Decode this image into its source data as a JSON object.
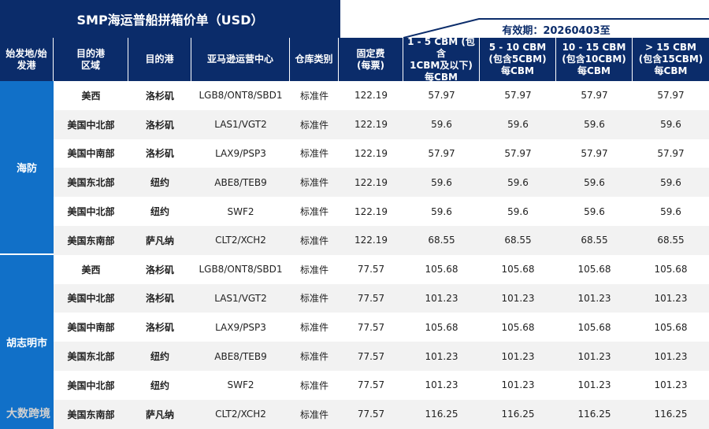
{
  "title": "SMP海运普船拼箱价单（USD）",
  "validity": "有效期：20260403至",
  "headers": [
    "始发地/始\n发港",
    "目的港\n区域",
    "目的港",
    "亚马逊运营中心",
    "仓库类别",
    "固定费\n(每票)",
    "1 - 5 CBM (包含\n1CBM及以下)\n每CBM",
    "5 - 10 CBM\n(包含5CBM)\n每CBM",
    "10 - 15 CBM\n(包含10CBM)\n每CBM",
    "> 15 CBM\n(包含15CBM)\n每CBM"
  ],
  "origins": [
    {
      "name": "海防",
      "rows": [
        {
          "region": "美西",
          "port": "洛杉矶",
          "center": "LGB8/ONT8/SBD1",
          "type": "标准件",
          "fee": "122.19",
          "p1": "57.97",
          "p2": "57.97",
          "p3": "57.97",
          "p4": "57.97"
        },
        {
          "region": "美国中北部",
          "port": "洛杉矶",
          "center": "LAS1/VGT2",
          "type": "标准件",
          "fee": "122.19",
          "p1": "59.6",
          "p2": "59.6",
          "p3": "59.6",
          "p4": "59.6"
        },
        {
          "region": "美国中南部",
          "port": "洛杉矶",
          "center": "LAX9/PSP3",
          "type": "标准件",
          "fee": "122.19",
          "p1": "57.97",
          "p2": "57.97",
          "p3": "57.97",
          "p4": "57.97"
        },
        {
          "region": "美国东北部",
          "port": "纽约",
          "center": "ABE8/TEB9",
          "type": "标准件",
          "fee": "122.19",
          "p1": "59.6",
          "p2": "59.6",
          "p3": "59.6",
          "p4": "59.6"
        },
        {
          "region": "美国中北部",
          "port": "纽约",
          "center": "SWF2",
          "type": "标准件",
          "fee": "122.19",
          "p1": "59.6",
          "p2": "59.6",
          "p3": "59.6",
          "p4": "59.6"
        },
        {
          "region": "美国东南部",
          "port": "萨凡纳",
          "center": "CLT2/XCH2",
          "type": "标准件",
          "fee": "122.19",
          "p1": "68.55",
          "p2": "68.55",
          "p3": "68.55",
          "p4": "68.55"
        }
      ]
    },
    {
      "name": "胡志明市",
      "rows": [
        {
          "region": "美西",
          "port": "洛杉矶",
          "center": "LGB8/ONT8/SBD1",
          "type": "标准件",
          "fee": "77.57",
          "p1": "105.68",
          "p2": "105.68",
          "p3": "105.68",
          "p4": "105.68"
        },
        {
          "region": "美国中北部",
          "port": "洛杉矶",
          "center": "LAS1/VGT2",
          "type": "标准件",
          "fee": "77.57",
          "p1": "101.23",
          "p2": "101.23",
          "p3": "101.23",
          "p4": "101.23"
        },
        {
          "region": "美国中南部",
          "port": "洛杉矶",
          "center": "LAX9/PSP3",
          "type": "标准件",
          "fee": "77.57",
          "p1": "105.68",
          "p2": "105.68",
          "p3": "105.68",
          "p4": "105.68"
        },
        {
          "region": "美国东北部",
          "port": "纽约",
          "center": "ABE8/TEB9",
          "type": "标准件",
          "fee": "77.57",
          "p1": "101.23",
          "p2": "101.23",
          "p3": "101.23",
          "p4": "101.23"
        },
        {
          "region": "美国中北部",
          "port": "纽约",
          "center": "SWF2",
          "type": "标准件",
          "fee": "77.57",
          "p1": "101.23",
          "p2": "101.23",
          "p3": "101.23",
          "p4": "101.23"
        },
        {
          "region": "美国东南部",
          "port": "萨凡纳",
          "center": "CLT2/XCH2",
          "type": "标准件",
          "fee": "77.57",
          "p1": "116.25",
          "p2": "116.25",
          "p3": "116.25",
          "p4": "116.25"
        }
      ]
    }
  ],
  "watermark": "大数跨境",
  "colors": {
    "header_bg": "#0b2c6a",
    "origin_bg": "#1170c8",
    "alt_row": "#f2f2f2"
  }
}
